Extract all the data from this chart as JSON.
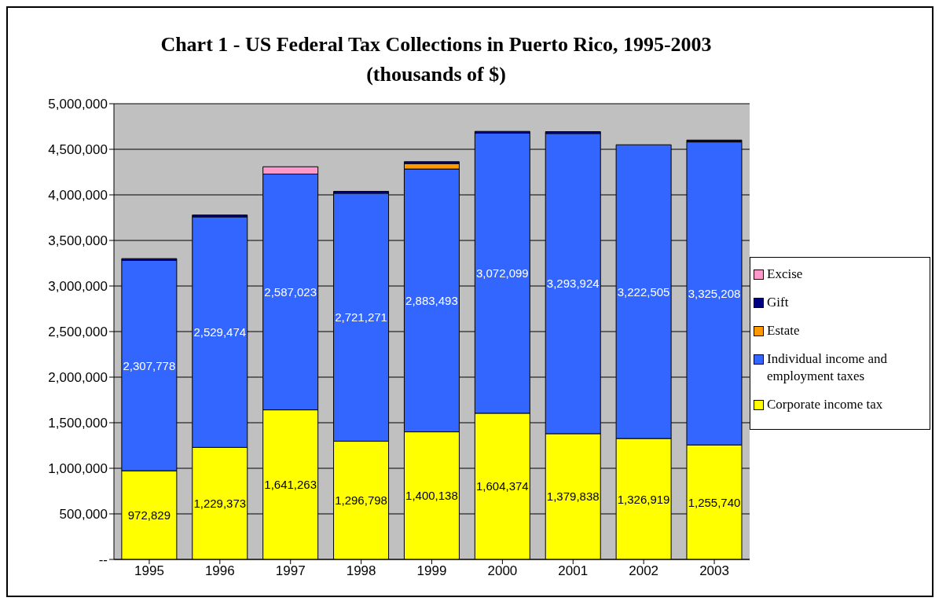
{
  "chart_data": {
    "type": "bar",
    "stacked": true,
    "title": "Chart 1 - US Federal Tax Collections in Puerto Rico, 1995-2003",
    "subtitle": "(thousands of $)",
    "categories": [
      "1995",
      "1996",
      "1997",
      "1998",
      "1999",
      "2000",
      "2001",
      "2002",
      "2003"
    ],
    "series": [
      {
        "name": "Corporate income tax",
        "color": "#ffff00",
        "values": [
          972829,
          1229373,
          1641263,
          1296798,
          1400138,
          1604374,
          1379838,
          1326919,
          1255740
        ],
        "value_labels": [
          "972,829",
          "1,229,373",
          "1,641,263",
          "1,296,798",
          "1,400,138",
          "1,604,374",
          "1,379,838",
          "1,326,919",
          "1,255,740"
        ]
      },
      {
        "name": "Individual income and employment taxes",
        "color": "#3366ff",
        "values": [
          2307778,
          2529474,
          2587023,
          2721271,
          2883493,
          3072099,
          3293924,
          3222505,
          3325208
        ],
        "value_labels": [
          "2,307,778",
          "2,529,474",
          "2,587,023",
          "2,721,271",
          "2,883,493",
          "3,072,099",
          "3,293,924",
          "3,222,505",
          "3,325,208"
        ]
      },
      {
        "name": "Estate",
        "color": "#ff9900",
        "values": [
          null,
          null,
          null,
          null,
          60000,
          null,
          null,
          null,
          null
        ]
      },
      {
        "name": "Gift",
        "color": "#000080",
        "values": [
          20000,
          20000,
          null,
          20000,
          20000,
          20000,
          20000,
          null,
          20000
        ]
      },
      {
        "name": "Excise",
        "color": "#ff99cc",
        "values": [
          null,
          null,
          80000,
          null,
          null,
          null,
          null,
          null,
          null
        ]
      }
    ],
    "ylim": [
      0,
      5000000
    ],
    "yticks": [
      {
        "value": 0,
        "label": "--"
      },
      {
        "value": 500000,
        "label": "500,000"
      },
      {
        "value": 1000000,
        "label": "1,000,000"
      },
      {
        "value": 1500000,
        "label": "1,500,000"
      },
      {
        "value": 2000000,
        "label": "2,000,000"
      },
      {
        "value": 2500000,
        "label": "2,500,000"
      },
      {
        "value": 3000000,
        "label": "3,000,000"
      },
      {
        "value": 3500000,
        "label": "3,500,000"
      },
      {
        "value": 4000000,
        "label": "4,000,000"
      },
      {
        "value": 4500000,
        "label": "4,500,000"
      },
      {
        "value": 5000000,
        "label": "5,000,000"
      }
    ],
    "grid": "y",
    "legend": "right"
  }
}
